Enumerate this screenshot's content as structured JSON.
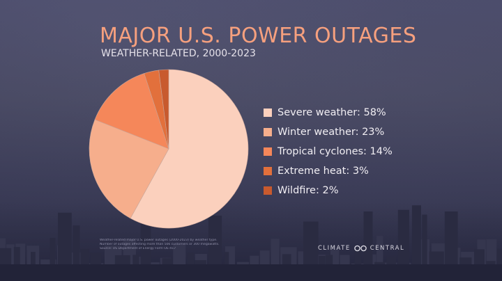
{
  "chart_data": {
    "type": "pie",
    "title": "MAJOR U.S. POWER OUTAGES",
    "subtitle": "WEATHER-RELATED, 2000-2023",
    "categories": [
      "Severe weather",
      "Winter weather",
      "Tropical cyclones",
      "Extreme heat",
      "Wildfire"
    ],
    "values": [
      58,
      23,
      14,
      3,
      2
    ],
    "unit": "%",
    "colors": [
      "#fbd0bd",
      "#f6ae8c",
      "#f5875a",
      "#e2703c",
      "#c85a2e"
    ],
    "legend_position": "right",
    "legend_labels": [
      "Severe weather: 58%",
      "Winter weather: 23%",
      "Tropical cyclones: 14%",
      "Extreme heat: 3%",
      "Wildfire: 2%"
    ]
  },
  "footer": {
    "notes": [
      "Weather-related major U.S. power outages (2000-2023) by weather type.",
      "Number of outages affecting more than 50k customers or 300 megawatts.",
      "Source: US Department of Energy Form OE-417"
    ],
    "logo_left": "CLIMATE",
    "logo_right": "CENTRAL",
    "logo_icon": "infinity-loop-icon"
  }
}
